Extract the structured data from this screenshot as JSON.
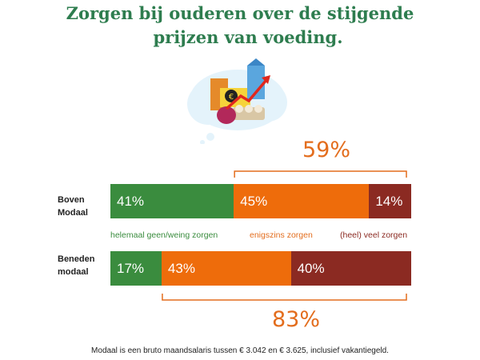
{
  "title_line1": "Zorgen bij ouderen over de stijgende",
  "title_line2": "prijzen van voeding.",
  "chart_data": {
    "type": "bar",
    "orientation": "horizontal",
    "stacked": true,
    "categories": [
      "Boven Modaal",
      "Beneden modaal"
    ],
    "category_lines": [
      [
        "Boven",
        "Modaal"
      ],
      [
        "Beneden",
        "modaal"
      ]
    ],
    "series": [
      {
        "name": "helemaal geen/weing zorgen",
        "color": "#3a8c3e",
        "values": [
          41,
          17
        ],
        "labels": [
          "41%",
          "17%"
        ]
      },
      {
        "name": "enigszins zorgen",
        "color": "#ee6c0b",
        "values": [
          45,
          43
        ],
        "labels": [
          "45%",
          "43%"
        ]
      },
      {
        "name": "(heel) veel zorgen",
        "color": "#8b2a22",
        "values": [
          14,
          40
        ],
        "labels": [
          "14%",
          "40%"
        ]
      }
    ],
    "legend_colors": [
      "#3a8c3e",
      "#e36d1d",
      "#8b2a22"
    ],
    "annotations": [
      {
        "text": "59%",
        "applies_to": "Boven Modaal",
        "covers": [
          "enigszins zorgen",
          "(heel) veel zorgen"
        ],
        "placement": "above"
      },
      {
        "text": "83%",
        "applies_to": "Beneden modaal",
        "covers": [
          "enigszins zorgen",
          "(heel) veel zorgen"
        ],
        "placement": "below"
      }
    ]
  },
  "footnote": "Modaal is een bruto maandsalaris tussen € 3.042 en € 3.625, inclusief vakantiegeld."
}
